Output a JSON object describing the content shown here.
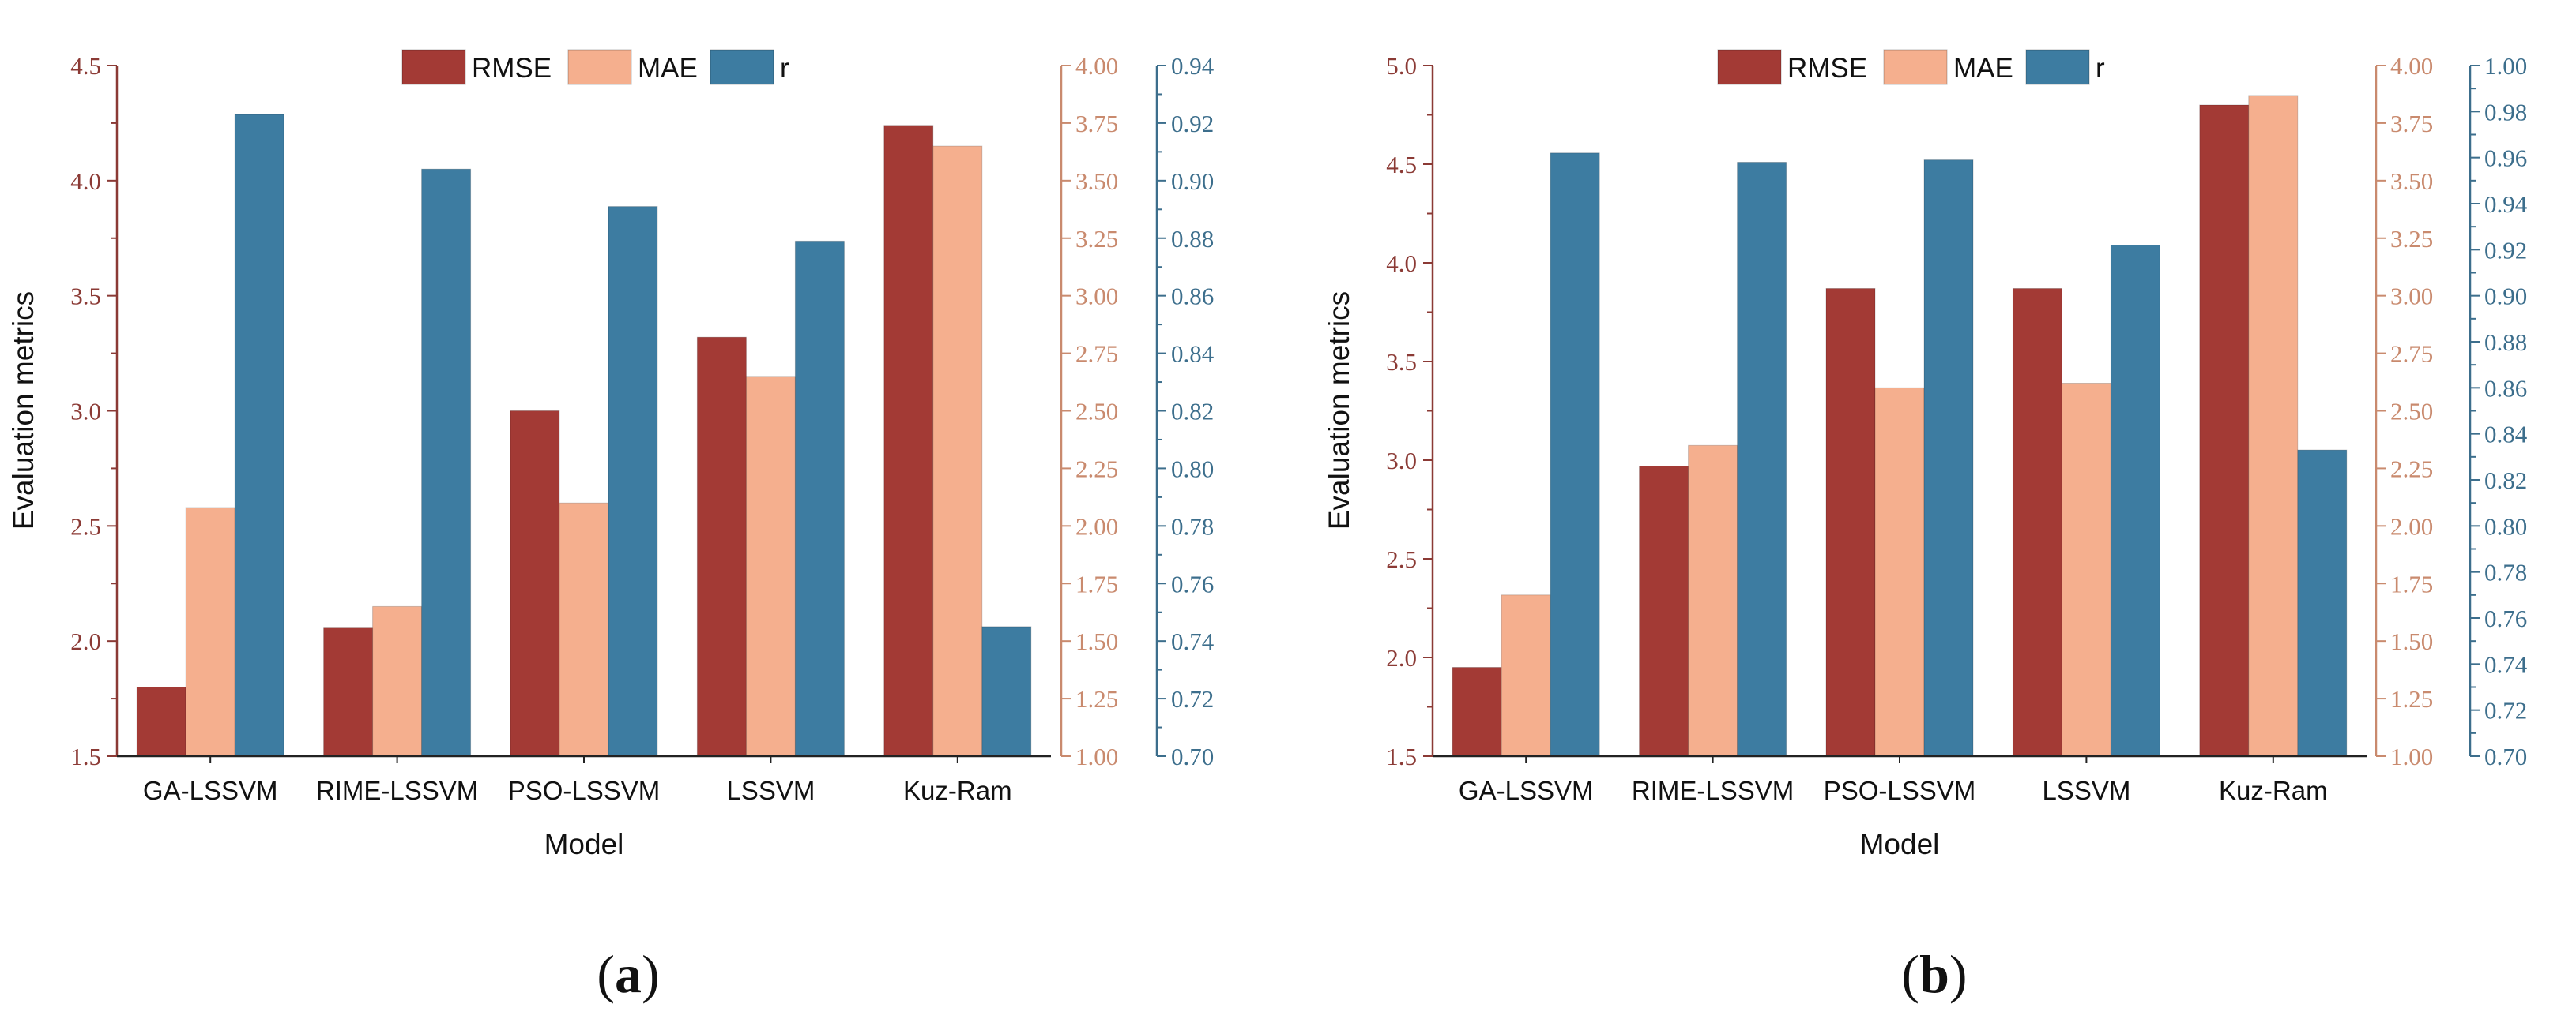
{
  "colors": {
    "rmse": "#A33A35",
    "mae": "#F5AF8E",
    "r": "#3D7CA1",
    "left_axis": "#8B3A35",
    "mae_axis": "#C98A6E",
    "r_axis": "#3C6E8C"
  },
  "chart_data": [
    {
      "type": "bar",
      "panel_label": "(a)",
      "label_open": "(",
      "label_letter": "a",
      "label_close": ")",
      "title": "",
      "xlabel": "Model",
      "ylabel": "Evaluation metrics",
      "categories": [
        "GA-LSSVM",
        "RIME-LSSVM",
        "PSO-LSSVM",
        "LSSVM",
        "Kuz-Ram"
      ],
      "legend": [
        "RMSE",
        "MAE",
        "r"
      ],
      "legend_position": "top-center",
      "series": [
        {
          "name": "RMSE",
          "axis": "left",
          "values": [
            1.8,
            2.06,
            3.0,
            3.32,
            4.24
          ]
        },
        {
          "name": "MAE",
          "axis": "right1",
          "values": [
            2.08,
            1.65,
            2.1,
            2.65,
            3.65
          ]
        },
        {
          "name": "r",
          "axis": "right2",
          "values": [
            0.923,
            0.904,
            0.891,
            0.879,
            0.745
          ]
        }
      ],
      "axes": {
        "left": {
          "ylim": [
            1.5,
            4.5
          ],
          "ticks": [
            "1.5",
            "2.0",
            "2.5",
            "3.0",
            "3.5",
            "4.0",
            "4.5"
          ]
        },
        "right1": {
          "ylim": [
            1.0,
            4.0
          ],
          "ticks": [
            "1.00",
            "1.25",
            "1.50",
            "1.75",
            "2.00",
            "2.25",
            "2.50",
            "2.75",
            "3.00",
            "3.25",
            "3.50",
            "3.75",
            "4.00"
          ]
        },
        "right2": {
          "ylim": [
            0.7,
            0.94
          ],
          "ticks": [
            "0.70",
            "0.72",
            "0.74",
            "0.76",
            "0.78",
            "0.80",
            "0.82",
            "0.84",
            "0.86",
            "0.88",
            "0.90",
            "0.92",
            "0.94"
          ]
        }
      }
    },
    {
      "type": "bar",
      "panel_label": "(b)",
      "label_open": "(",
      "label_letter": "b",
      "label_close": ")",
      "title": "",
      "xlabel": "Model",
      "ylabel": "Evaluation metrics",
      "categories": [
        "GA-LSSVM",
        "RIME-LSSVM",
        "PSO-LSSVM",
        "LSSVM",
        "Kuz-Ram"
      ],
      "legend": [
        "RMSE",
        "MAE",
        "r"
      ],
      "legend_position": "top-center",
      "series": [
        {
          "name": "RMSE",
          "axis": "left",
          "values": [
            1.95,
            2.97,
            3.87,
            3.87,
            4.8
          ]
        },
        {
          "name": "MAE",
          "axis": "right1",
          "values": [
            1.7,
            2.35,
            2.6,
            2.62,
            3.87
          ]
        },
        {
          "name": "r",
          "axis": "right2",
          "values": [
            0.962,
            0.958,
            0.959,
            0.922,
            0.833
          ]
        }
      ],
      "axes": {
        "left": {
          "ylim": [
            1.5,
            5.0
          ],
          "ticks": [
            "1.5",
            "2.0",
            "2.5",
            "3.0",
            "3.5",
            "4.0",
            "4.5",
            "5.0"
          ]
        },
        "right1": {
          "ylim": [
            1.0,
            4.0
          ],
          "ticks": [
            "1.00",
            "1.25",
            "1.50",
            "1.75",
            "2.00",
            "2.25",
            "2.50",
            "2.75",
            "3.00",
            "3.25",
            "3.50",
            "3.75",
            "4.00"
          ]
        },
        "right2": {
          "ylim": [
            0.7,
            1.0
          ],
          "ticks": [
            "0.70",
            "0.72",
            "0.74",
            "0.76",
            "0.78",
            "0.80",
            "0.82",
            "0.84",
            "0.86",
            "0.88",
            "0.90",
            "0.92",
            "0.94",
            "0.96",
            "0.98",
            "1.00"
          ]
        }
      }
    }
  ]
}
